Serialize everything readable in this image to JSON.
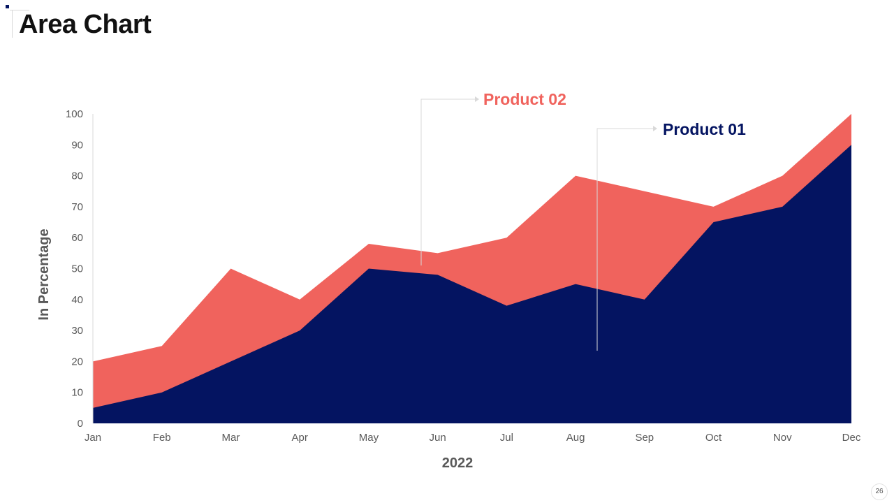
{
  "page": {
    "title": "Area Chart",
    "page_number": "26"
  },
  "colors": {
    "product_01": "#041461",
    "product_02": "#f0635d",
    "axis_text": "#595959",
    "title_text": "#111111"
  },
  "chart_data": {
    "type": "area",
    "stacked": false,
    "categories": [
      "Jan",
      "Feb",
      "Mar",
      "Apr",
      "May",
      "Jun",
      "Jul",
      "Aug",
      "Sep",
      "Oct",
      "Nov",
      "Dec"
    ],
    "series": [
      {
        "name": "Product 02",
        "color": "#f0635d",
        "values": [
          20,
          25,
          50,
          40,
          58,
          55,
          60,
          80,
          75,
          70,
          80,
          100
        ]
      },
      {
        "name": "Product 01",
        "color": "#041461",
        "values": [
          5,
          10,
          20,
          30,
          50,
          48,
          38,
          45,
          40,
          65,
          70,
          90
        ]
      }
    ],
    "title": "",
    "xlabel": "2022",
    "ylabel": "In Percentage",
    "ylim": [
      0,
      100
    ],
    "yticks": [
      0,
      10,
      20,
      30,
      40,
      50,
      60,
      70,
      80,
      90,
      100
    ],
    "grid": false,
    "legend": "callouts"
  }
}
